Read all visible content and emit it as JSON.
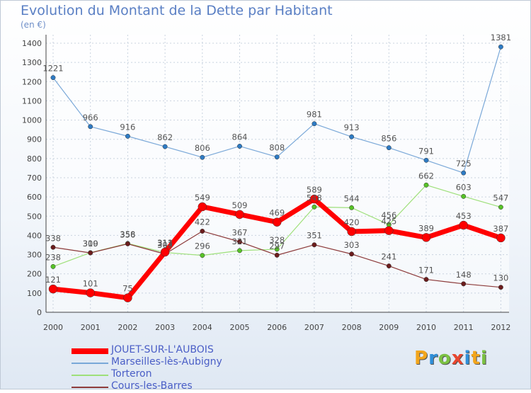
{
  "chart_data": {
    "type": "line",
    "title": "Evolution du Montant de la Dette par Habitant",
    "subtitle": "(en €)",
    "x": [
      "2000",
      "2001",
      "2002",
      "2003",
      "2004",
      "2005",
      "2006",
      "2007",
      "2008",
      "2009",
      "2010",
      "2011",
      "2012"
    ],
    "ylim": [
      0,
      1400
    ],
    "yticks": [
      0,
      100,
      200,
      300,
      400,
      500,
      600,
      700,
      800,
      900,
      1000,
      1100,
      1200,
      1300,
      1400
    ],
    "grid": true,
    "legend_position": "bottom-left",
    "series": [
      {
        "name": "JOUET-SUR-L'AUBOIS",
        "color": "#ff0000",
        "marker": "#ff0000",
        "values": [
          121,
          101,
          75,
          313,
          549,
          509,
          469,
          589,
          420,
          425,
          389,
          453,
          387
        ]
      },
      {
        "name": "Marseilles-lès-Aubigny",
        "color": "#7aa8d8",
        "marker": "#2e7bc4",
        "values": [
          1221,
          966,
          916,
          862,
          806,
          864,
          808,
          981,
          913,
          856,
          791,
          725,
          1381
        ]
      },
      {
        "name": "Torteron",
        "color": "#9ee07a",
        "marker": "#57c227",
        "values": [
          238,
          310,
          358,
          311,
          296,
          321,
          328,
          548,
          544,
          456,
          662,
          603,
          547
        ]
      },
      {
        "name": "Cours-les-Barres",
        "color": "#8c3a3a",
        "marker": "#6b1c1c",
        "values": [
          338,
          309,
          356,
          303,
          422,
          367,
          297,
          351,
          303,
          241,
          171,
          148,
          130
        ]
      }
    ]
  },
  "logo": {
    "letters": [
      "P",
      "r",
      "o",
      "x",
      "i",
      "t",
      "i"
    ],
    "colors": [
      "#f2a51c",
      "#2f8fd9",
      "#7bc142",
      "#e8462f",
      "#2f8fd9",
      "#f2a51c",
      "#7bc142"
    ]
  }
}
